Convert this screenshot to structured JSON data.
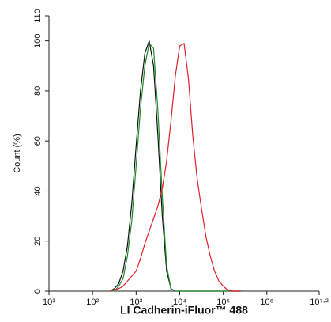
{
  "chart_data": {
    "type": "line",
    "xlabel": "LI Cadherin-iFluor™ 488",
    "ylabel": "Count (%)",
    "xscale": "log",
    "xlim": [
      10,
      15848932
    ],
    "xticks": [
      {
        "value": 10,
        "label": "10¹"
      },
      {
        "value": 100,
        "label": "10²"
      },
      {
        "value": 1000,
        "label": "10³"
      },
      {
        "value": 10000,
        "label": "10⁴"
      },
      {
        "value": 100000,
        "label": "10⁵"
      },
      {
        "value": 1000000,
        "label": "10⁶"
      },
      {
        "value": 15848932,
        "label": "10⁷·²"
      }
    ],
    "ylim": [
      0,
      110
    ],
    "yticks": [
      0,
      20,
      40,
      60,
      80,
      100,
      110
    ],
    "x": [
      251,
      316,
      398,
      501,
      631,
      794,
      1000,
      1259,
      1585,
      1995,
      2512,
      3162,
      3981,
      5012,
      6310,
      7943,
      10000,
      12589,
      15849,
      19953,
      25119,
      31623,
      39811,
      50119,
      63096,
      79433,
      100000,
      125893,
      158489,
      199526,
      251189
    ],
    "series": [
      {
        "color": "#111111",
        "values": [
          0,
          1,
          3,
          8,
          18,
          35,
          58,
          80,
          95,
          100,
          90,
          62,
          30,
          8,
          1,
          0,
          0,
          0,
          0,
          0,
          0,
          0,
          0,
          0,
          0,
          0,
          0,
          0,
          0,
          0,
          0
        ]
      },
      {
        "color": "#1e8c2a",
        "values": [
          0,
          0,
          2,
          5,
          14,
          28,
          50,
          73,
          90,
          99,
          97,
          72,
          38,
          10,
          1,
          0,
          0,
          0,
          0,
          0,
          0,
          0,
          0,
          0,
          0,
          0,
          0,
          0,
          0,
          0,
          0
        ]
      },
      {
        "color": "#e0202a",
        "values": [
          0,
          0.5,
          1,
          2,
          4,
          6,
          8,
          13,
          19,
          24,
          29,
          34,
          41,
          52,
          68,
          86,
          98,
          99,
          85,
          62,
          45,
          33,
          22,
          14,
          8,
          4,
          2,
          0.5,
          0,
          0,
          0
        ]
      }
    ]
  }
}
